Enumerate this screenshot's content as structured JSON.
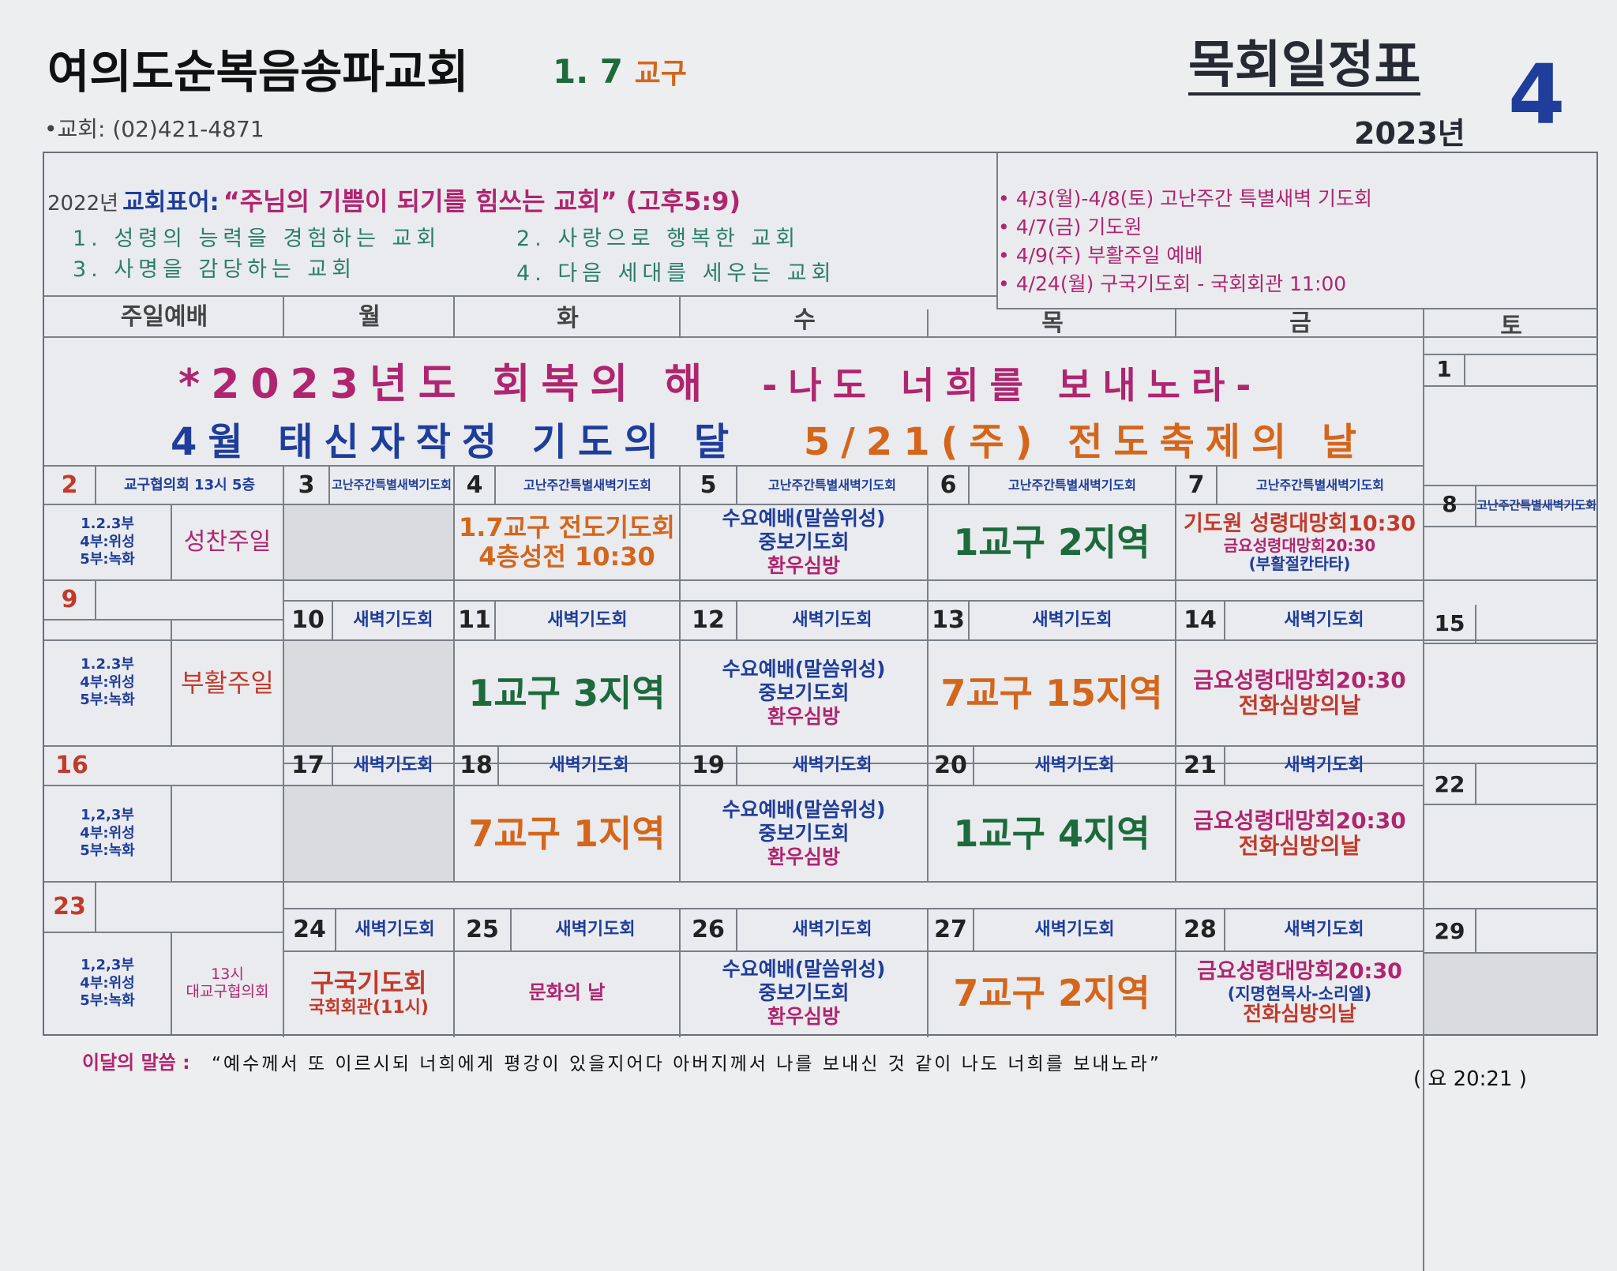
{
  "header": {
    "church_name": "여의도순복음송파교회",
    "district": "1. 7 교구",
    "district_num": "1. 7",
    "district_word": "교구",
    "phone": "•교회: (02)421-4871",
    "title": "목회일정표",
    "year": "2023년",
    "month": "4"
  },
  "motto": {
    "year_label": "2022년",
    "label": "교회표어:",
    "text": "“주님의 기쁨이 되기를 힘쓰는 교회” (고후5:9)",
    "items": [
      "1. 성령의 능력을 경험하는 교회",
      "2. 사랑으로 행복한 교회",
      "3. 사명을 감당하는 교회",
      "4. 다음 세대를 세우는 교회"
    ]
  },
  "notices": [
    "• 4/3(월)-4/8(토) 고난주간 특별새벽 기도회",
    "• 4/7(금) 기도원",
    "• 4/9(주) 부활주일 예배",
    "• 4/24(월) 구국기도회 - 국회회관 11:00"
  ],
  "weekdays": [
    "주일예배",
    "월",
    "화",
    "수",
    "목",
    "금",
    "토"
  ],
  "banner": {
    "line1_a": "*2023년도 회복의 해",
    "line1_b": "-나도 너희를 보내노라-",
    "line2_a": "4월 태신자작정 기도의 달",
    "line2_b": "5/21(주) 전도축제의 날"
  },
  "sunday_schedule": [
    "1.2.3부",
    "4부:위성",
    "5부:녹화"
  ],
  "sunday_schedule_alt": [
    "1,2,3부",
    "4부:위성",
    "5부:녹화"
  ],
  "week0": {
    "sat": "1"
  },
  "week1": {
    "sun": "2",
    "sun_event": "교구협의회 13시 5층",
    "sun_note": "성찬주일",
    "mon": "3",
    "mon_event": "고난주간특별새벽기도회",
    "tue": "4",
    "tue_event": "고난주간특별새벽기도회",
    "tue_main1": "1.7교구 전도기도회",
    "tue_main2": "4층성전 10:30",
    "wed": "5",
    "wed_event": "고난주간특별새벽기도회",
    "thu": "6",
    "thu_event": "고난주간특별새벽기도회",
    "thu_main": "1교구 2지역",
    "fri": "7",
    "fri_event": "고난주간특별새벽기도회",
    "fri_main1": "기도원 성령대망회10:30",
    "fri_main2": "금요성령대망회20:30",
    "fri_main3": "(부활절칸타타)",
    "sat": "8",
    "sat_event": "고난주간특별새벽기도회"
  },
  "week2": {
    "sun": "9",
    "sun_note": "부활주일",
    "mon": "10",
    "tue": "11",
    "tue_main": "1교구 3지역",
    "wed": "12",
    "thu": "13",
    "thu_main": "7교구 15지역",
    "fri": "14",
    "fri_main1": "금요성령대망회20:30",
    "fri_main2": "전화심방의날",
    "sat": "15"
  },
  "week3": {
    "sun": "16",
    "mon": "17",
    "tue": "18",
    "tue_main": "7교구 1지역",
    "wed": "19",
    "thu": "20",
    "thu_main": "1교구 4지역",
    "fri": "21",
    "fri_main1": "금요성령대망회20:30",
    "fri_main2": "전화심방의날",
    "sat": "22"
  },
  "week4": {
    "sun": "23",
    "sun_note1": "13시",
    "sun_note2": "대교구협의회",
    "mon": "24",
    "mon_main1": "구국기도회",
    "mon_main2": "국회회관(11시)",
    "tue": "25",
    "tue_main": "문화의 날",
    "wed": "26",
    "thu": "27",
    "thu_main": "7교구 2지역",
    "fri": "28",
    "fri_main1": "금요성령대망회20:30",
    "fri_main2": "(지명현목사-소리엘)",
    "fri_main3": "전화심방의날",
    "sat": "29"
  },
  "saebyuk": "새벽기도회",
  "wednesday": [
    "수요예배(말씀위성)",
    "중보기도회",
    "환우심방"
  ],
  "verse": {
    "label": "이달의 말씀 :",
    "text": "“예수께서 또 이르시되 너희에게 평강이 있을지어다 아버지께서 나를 보내신 것 같이 나도 너희를 보내노라”",
    "ref": "( 요 20:21 )"
  },
  "colors": {
    "blue": "#1f3d9a",
    "green": "#1d6a3c",
    "red": "#c23a2a",
    "orange": "#d4661c",
    "magenta": "#b0256f"
  }
}
